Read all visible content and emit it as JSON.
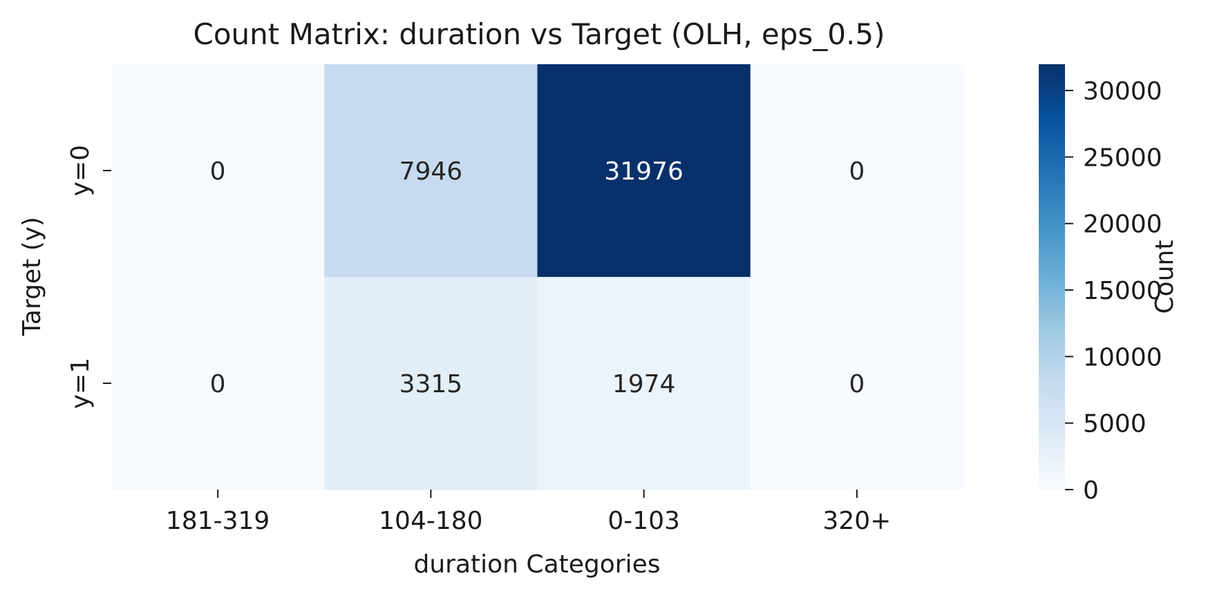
{
  "chart_data": {
    "type": "heatmap",
    "title": "Count Matrix: duration vs Target (OLH, eps_0.5)",
    "xlabel": "duration Categories",
    "ylabel": "Target (y)",
    "x_categories": [
      "181-319",
      "104-180",
      "0-103",
      "320+"
    ],
    "y_categories": [
      "y=0",
      "y=1"
    ],
    "values": [
      [
        0,
        7946,
        31976,
        0
      ],
      [
        0,
        3315,
        1974,
        0
      ]
    ],
    "colormap": "Blues",
    "vmin": 0,
    "vmax": 31976,
    "colorbar": {
      "label": "Count",
      "ticks": [
        0,
        5000,
        10000,
        15000,
        20000,
        25000,
        30000
      ],
      "tick_labels": [
        "0",
        "5000",
        "10000",
        "15000",
        "20000",
        "25000",
        "30000"
      ]
    }
  }
}
